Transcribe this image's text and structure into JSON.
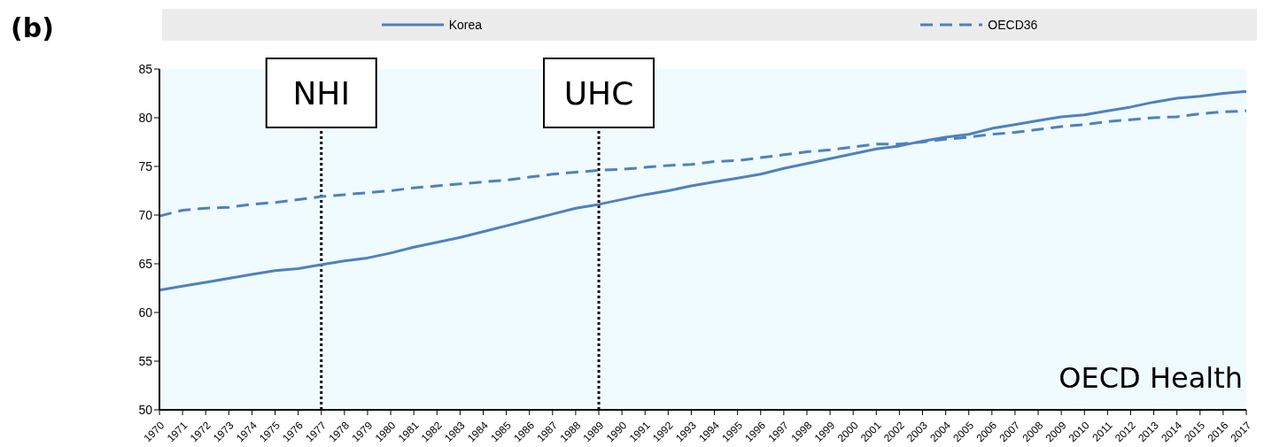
{
  "chart_data": {
    "type": "line",
    "title": "(b)",
    "categories": [
      "1970",
      "1971",
      "1972",
      "1973",
      "1974",
      "1975",
      "1976",
      "1977",
      "1978",
      "1979",
      "1980",
      "1981",
      "1982",
      "1983",
      "1984",
      "1985",
      "1986",
      "1987",
      "1988",
      "1989",
      "1990",
      "1991",
      "1992",
      "1993",
      "1994",
      "1995",
      "1996",
      "1997",
      "1998",
      "1999",
      "2000",
      "2001",
      "2002",
      "2003",
      "2004",
      "2005",
      "2006",
      "2007",
      "2008",
      "2009",
      "2010",
      "2011",
      "2012",
      "2013",
      "2014",
      "2015",
      "2016",
      "2017"
    ],
    "series": [
      {
        "name": "Korea",
        "color": "#4f81bd",
        "line_style": "solid",
        "values": [
          62.3,
          62.7,
          63.1,
          63.5,
          63.9,
          64.3,
          64.5,
          64.9,
          65.3,
          65.6,
          66.1,
          66.7,
          67.2,
          67.7,
          68.3,
          68.9,
          69.5,
          70.1,
          70.7,
          71.1,
          71.6,
          72.1,
          72.5,
          73.0,
          73.4,
          73.8,
          74.2,
          74.8,
          75.3,
          75.8,
          76.3,
          76.8,
          77.1,
          77.6,
          78.0,
          78.3,
          78.9,
          79.3,
          79.7,
          80.1,
          80.3,
          80.7,
          81.1,
          81.6,
          82.0,
          82.2,
          82.5,
          82.7
        ]
      },
      {
        "name": "OECD36",
        "color": "#4f81bd",
        "line_style": "dashed",
        "values": [
          69.9,
          70.5,
          70.7,
          70.8,
          71.1,
          71.3,
          71.6,
          71.9,
          72.1,
          72.3,
          72.5,
          72.8,
          73.0,
          73.2,
          73.4,
          73.6,
          73.9,
          74.2,
          74.4,
          74.6,
          74.7,
          74.9,
          75.1,
          75.2,
          75.5,
          75.6,
          75.9,
          76.2,
          76.5,
          76.7,
          77.0,
          77.3,
          77.3,
          77.5,
          77.8,
          78.0,
          78.3,
          78.5,
          78.8,
          79.1,
          79.3,
          79.6,
          79.8,
          80.0,
          80.1,
          80.4,
          80.6,
          80.7
        ]
      }
    ],
    "ylim": [
      50,
      85
    ],
    "yticks": [
      50,
      55,
      60,
      65,
      70,
      75,
      80,
      85
    ],
    "grid": false,
    "legend": "top",
    "marker": "none",
    "ref_lines": [
      {
        "axis": "x",
        "value": "1977",
        "label": "NHI",
        "color": "#000000",
        "line_style": "dotted"
      },
      {
        "axis": "x",
        "value": "1989",
        "label": "UHC",
        "color": "#000000",
        "line_style": "dotted"
      }
    ],
    "annotations": [
      "OECD Health"
    ]
  }
}
